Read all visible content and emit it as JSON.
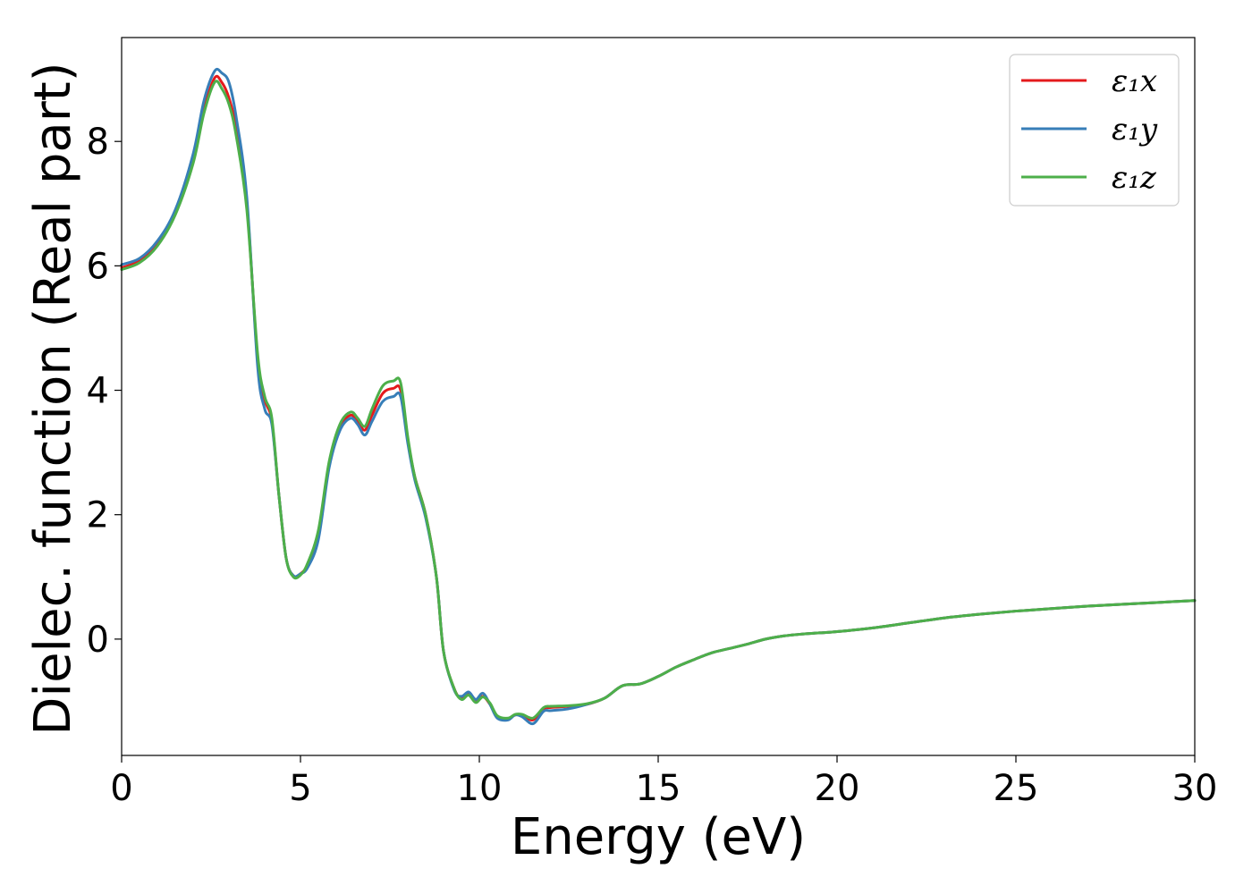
{
  "chart_data": {
    "type": "line",
    "xlabel": "Energy (eV)",
    "ylabel": "Dielec. function (Real part)",
    "xlim": [
      0,
      30
    ],
    "ylim": [
      -1.87,
      9.67
    ],
    "xticks": [
      0,
      5,
      10,
      15,
      20,
      25,
      30
    ],
    "yticks": [
      0,
      2,
      4,
      6,
      8
    ],
    "grid": false,
    "legend_position": "top-right",
    "series": [
      {
        "name": "ε₁x",
        "color": "#e41a1c",
        "x": [
          0,
          0.5,
          1,
          1.5,
          2,
          2.3,
          2.6,
          2.8,
          3.0,
          3.2,
          3.5,
          3.8,
          4.0,
          4.2,
          4.4,
          4.6,
          4.8,
          5.0,
          5.2,
          5.5,
          5.8,
          6.1,
          6.4,
          6.6,
          6.8,
          7.0,
          7.3,
          7.6,
          7.8,
          8.0,
          8.2,
          8.5,
          8.8,
          9.0,
          9.3,
          9.5,
          9.7,
          9.9,
          10.1,
          10.3,
          10.5,
          10.8,
          11.0,
          11.2,
          11.5,
          11.8,
          12.0,
          12.5,
          13.0,
          13.5,
          14.0,
          14.5,
          15.0,
          15.5,
          16.0,
          16.5,
          17.0,
          17.5,
          18.0,
          18.5,
          19.0,
          19.5,
          20.0,
          21.0,
          22.0,
          23.0,
          24.0,
          25.0,
          26.0,
          27.0,
          28.0,
          29.0,
          30.0
        ],
        "y": [
          5.97,
          6.08,
          6.35,
          6.85,
          7.7,
          8.5,
          9.02,
          8.95,
          8.7,
          8.2,
          7.0,
          4.5,
          3.85,
          3.5,
          2.3,
          1.3,
          1.02,
          1.05,
          1.2,
          1.7,
          2.8,
          3.4,
          3.6,
          3.5,
          3.36,
          3.6,
          3.95,
          4.03,
          4.0,
          3.2,
          2.6,
          2.0,
          1.0,
          -0.2,
          -0.8,
          -0.95,
          -0.88,
          -1.0,
          -0.92,
          -1.05,
          -1.25,
          -1.28,
          -1.22,
          -1.22,
          -1.3,
          -1.12,
          -1.1,
          -1.08,
          -1.05,
          -0.95,
          -0.75,
          -0.72,
          -0.6,
          -0.45,
          -0.33,
          -0.22,
          -0.15,
          -0.08,
          0.0,
          0.05,
          0.08,
          0.1,
          0.12,
          0.18,
          0.26,
          0.34,
          0.4,
          0.45,
          0.49,
          0.53,
          0.56,
          0.59,
          0.62
        ]
      },
      {
        "name": "ε₁y",
        "color": "#377eb8",
        "x": [
          0,
          0.5,
          1,
          1.5,
          2,
          2.3,
          2.6,
          2.8,
          3.0,
          3.2,
          3.5,
          3.8,
          4.0,
          4.2,
          4.4,
          4.6,
          4.8,
          5.0,
          5.2,
          5.5,
          5.8,
          6.1,
          6.4,
          6.6,
          6.8,
          7.0,
          7.3,
          7.6,
          7.8,
          8.0,
          8.2,
          8.5,
          8.8,
          9.0,
          9.3,
          9.5,
          9.7,
          9.9,
          10.1,
          10.3,
          10.5,
          10.8,
          11.0,
          11.2,
          11.5,
          11.8,
          12.0,
          12.5,
          13.0,
          13.5,
          14.0,
          14.5,
          15.0,
          15.5,
          16.0,
          16.5,
          17.0,
          17.5,
          18.0,
          18.5,
          19.0,
          19.5,
          20.0,
          21.0,
          22.0,
          23.0,
          24.0,
          25.0,
          26.0,
          27.0,
          28.0,
          29.0,
          30.0
        ],
        "y": [
          6.02,
          6.12,
          6.4,
          6.9,
          7.8,
          8.65,
          9.13,
          9.1,
          8.95,
          8.4,
          7.1,
          4.4,
          3.7,
          3.45,
          2.3,
          1.3,
          1.02,
          1.05,
          1.15,
          1.6,
          2.75,
          3.35,
          3.55,
          3.45,
          3.28,
          3.5,
          3.82,
          3.9,
          3.9,
          3.15,
          2.55,
          1.95,
          1.0,
          -0.2,
          -0.82,
          -0.92,
          -0.85,
          -0.97,
          -0.87,
          -1.05,
          -1.27,
          -1.3,
          -1.22,
          -1.25,
          -1.36,
          -1.16,
          -1.15,
          -1.12,
          -1.05,
          -0.95,
          -0.75,
          -0.72,
          -0.6,
          -0.45,
          -0.33,
          -0.22,
          -0.15,
          -0.08,
          0.0,
          0.05,
          0.08,
          0.1,
          0.12,
          0.18,
          0.26,
          0.34,
          0.4,
          0.45,
          0.49,
          0.53,
          0.56,
          0.59,
          0.62
        ]
      },
      {
        "name": "ε₁z",
        "color": "#4daf4a",
        "x": [
          0,
          0.5,
          1,
          1.5,
          2,
          2.3,
          2.6,
          2.8,
          3.0,
          3.2,
          3.5,
          3.8,
          4.0,
          4.2,
          4.4,
          4.6,
          4.8,
          5.0,
          5.2,
          5.5,
          5.8,
          6.1,
          6.4,
          6.6,
          6.8,
          7.0,
          7.3,
          7.6,
          7.8,
          8.0,
          8.2,
          8.5,
          8.8,
          9.0,
          9.3,
          9.5,
          9.7,
          9.9,
          10.1,
          10.3,
          10.5,
          10.8,
          11.0,
          11.2,
          11.5,
          11.8,
          12.0,
          12.5,
          13.0,
          13.5,
          14.0,
          14.5,
          15.0,
          15.5,
          16.0,
          16.5,
          17.0,
          17.5,
          18.0,
          18.5,
          19.0,
          19.5,
          20.0,
          21.0,
          22.0,
          23.0,
          24.0,
          25.0,
          26.0,
          27.0,
          28.0,
          29.0,
          30.0
        ],
        "y": [
          5.94,
          6.05,
          6.32,
          6.82,
          7.65,
          8.45,
          8.95,
          8.85,
          8.6,
          8.1,
          6.9,
          4.6,
          3.9,
          3.55,
          2.3,
          1.3,
          1.0,
          1.03,
          1.22,
          1.75,
          2.85,
          3.45,
          3.65,
          3.55,
          3.42,
          3.7,
          4.07,
          4.15,
          4.12,
          3.25,
          2.6,
          2.0,
          1.0,
          -0.2,
          -0.8,
          -0.97,
          -0.9,
          -1.02,
          -0.93,
          -1.03,
          -1.23,
          -1.27,
          -1.21,
          -1.21,
          -1.27,
          -1.1,
          -1.08,
          -1.07,
          -1.04,
          -0.95,
          -0.75,
          -0.72,
          -0.6,
          -0.45,
          -0.33,
          -0.22,
          -0.15,
          -0.08,
          0.0,
          0.05,
          0.08,
          0.1,
          0.12,
          0.18,
          0.26,
          0.34,
          0.4,
          0.45,
          0.49,
          0.53,
          0.56,
          0.59,
          0.62
        ]
      }
    ]
  }
}
